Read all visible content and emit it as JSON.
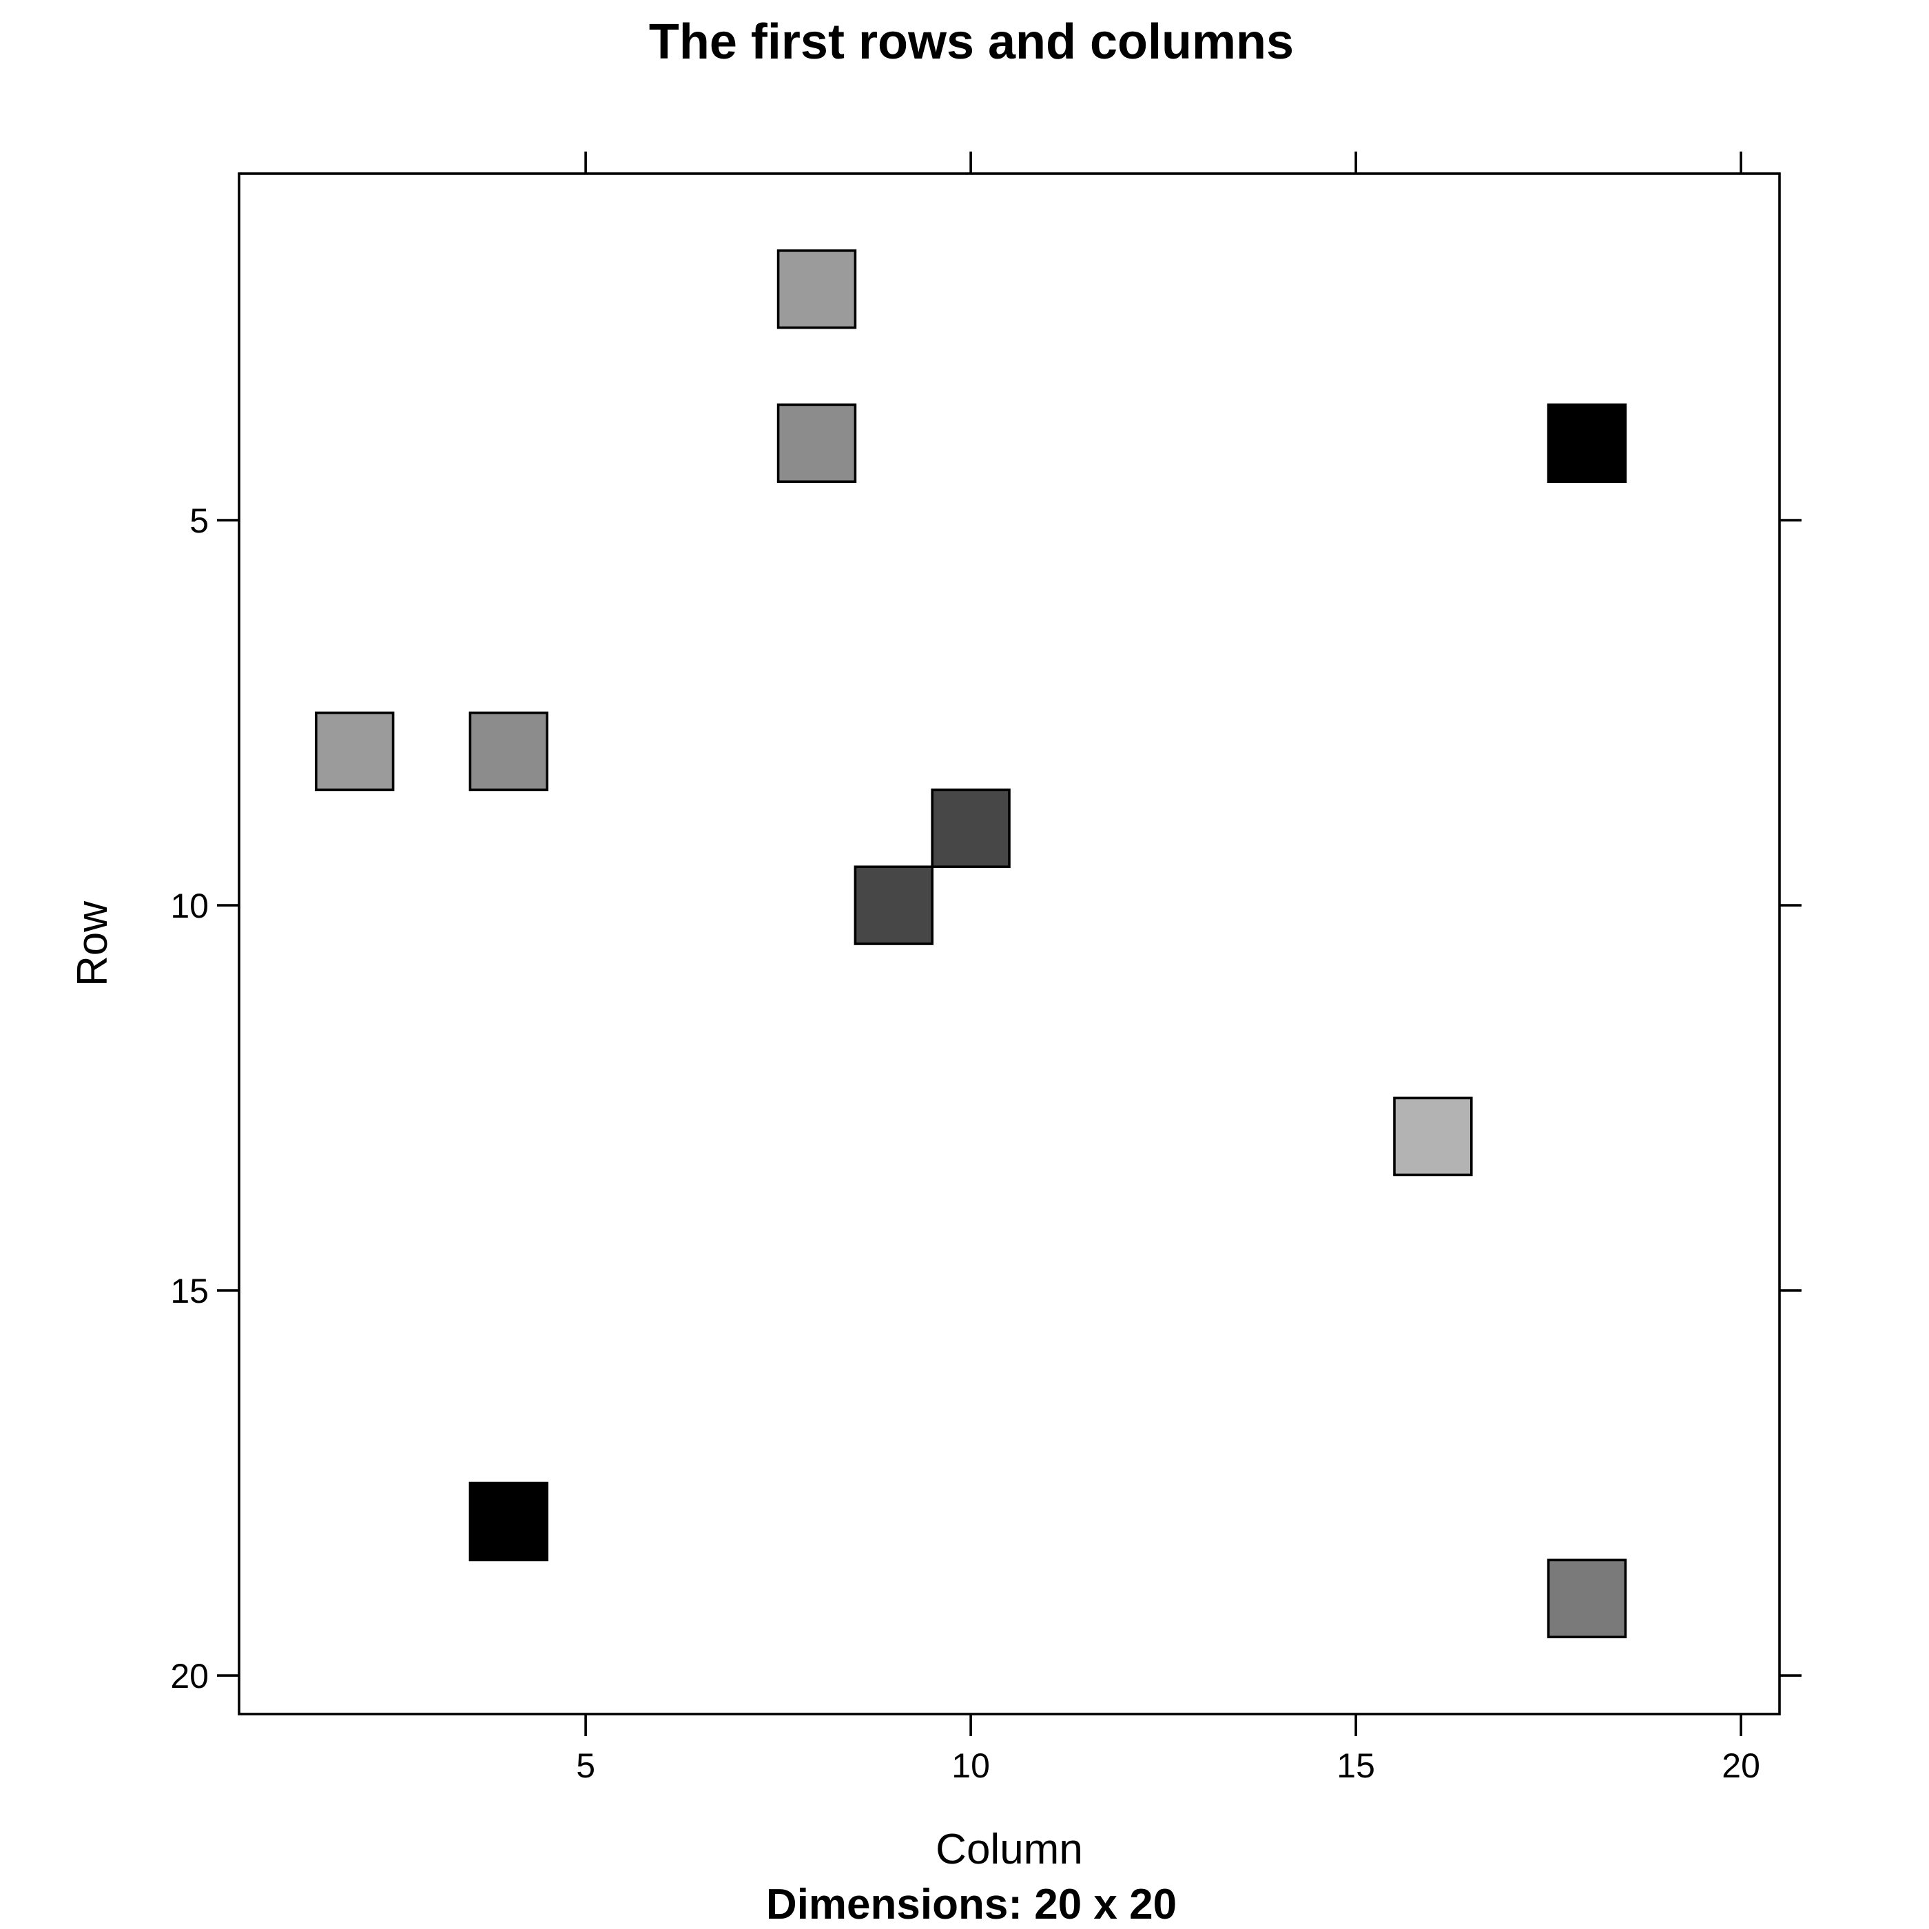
{
  "chart_data": {
    "type": "heatmap",
    "title": "The first rows and columns",
    "xlabel": "Column",
    "ylabel": "Row",
    "sub": "Dimensions: 20 x 20",
    "xlim": [
      0.5,
      20.5
    ],
    "ylim": [
      20.5,
      0.5
    ],
    "x_ticks": [
      5,
      10,
      15,
      20
    ],
    "y_ticks": [
      5,
      10,
      15,
      20
    ],
    "y_reversed": true,
    "cells": [
      {
        "col": 8,
        "row": 2,
        "color": "#9b9b9b"
      },
      {
        "col": 8,
        "row": 4,
        "color": "#8c8c8c"
      },
      {
        "col": 18,
        "row": 4,
        "color": "#000000"
      },
      {
        "col": 2,
        "row": 8,
        "color": "#9b9b9b"
      },
      {
        "col": 4,
        "row": 8,
        "color": "#8c8c8c"
      },
      {
        "col": 10,
        "row": 9,
        "color": "#474747"
      },
      {
        "col": 9,
        "row": 10,
        "color": "#474747"
      },
      {
        "col": 16,
        "row": 13,
        "color": "#b3b3b3"
      },
      {
        "col": 4,
        "row": 18,
        "color": "#000000"
      },
      {
        "col": 18,
        "row": 19,
        "color": "#7a7a7a"
      }
    ]
  }
}
